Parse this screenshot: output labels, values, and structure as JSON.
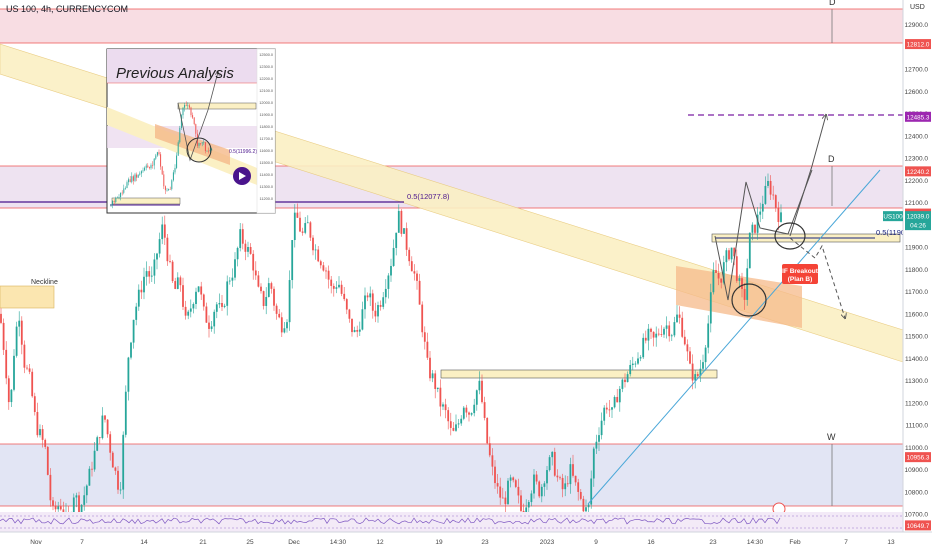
{
  "header": {
    "symbol_title": "US 100, 4h, CURRENCYCOM"
  },
  "colors": {
    "up": "#26a69a",
    "down": "#ef5350",
    "zone_red": "#f8cfd6",
    "zone_purple": "#e8dcef",
    "zone_blue": "#dfe3f3",
    "channel_yellow": "#fbf0c4",
    "channel_orange": "#f5b98a",
    "trend_blue": "#4aa7d8",
    "projection": "#7b1fa2"
  },
  "axis": {
    "currency_label": "USD",
    "price_ticks": [
      "12900.0",
      "12700.0",
      "12600.0",
      "12500.0",
      "12400.0",
      "12300.0",
      "12200.0",
      "12100.0",
      "11900.0",
      "11800.0",
      "11700.0",
      "11600.0",
      "11500.0",
      "11400.0",
      "11300.0",
      "11200.0",
      "11100.0",
      "11000.0",
      "10900.0",
      "10800.0",
      "10700.0"
    ],
    "price_badges": [
      {
        "label": "12812.0",
        "color": "#ef5350"
      },
      {
        "label": "12485.3",
        "color": "#9c27b0"
      },
      {
        "label": "12240.2",
        "color": "#ef5350"
      },
      {
        "label": "12050.5",
        "color": "#ef5350"
      },
      {
        "label": "12039.0",
        "color": "#26a69a"
      },
      {
        "label": "04:26",
        "color": "#26a69a"
      },
      {
        "label": "US100",
        "color": "#26a69a"
      },
      {
        "label": "10956.3",
        "color": "#ef5350"
      },
      {
        "label": "10649.7",
        "color": "#ef5350"
      }
    ],
    "time_ticks": [
      "Nov",
      "7",
      "14",
      "21",
      "25",
      "Dec",
      "14:30",
      "12",
      "19",
      "23",
      "2023",
      "9",
      "16",
      "23",
      "14:30",
      "Feb",
      "7",
      "13"
    ]
  },
  "annotations": {
    "neckline": "Neckline",
    "fib_label_1": "0.5(12077.8)",
    "fib_label_2": "0.5(11904",
    "plan_b_line1": "IF Breakout",
    "plan_b_line2": "(Plan B)",
    "point_d_top": "D",
    "point_d_mid": "D",
    "point_w": "W"
  },
  "inset": {
    "title": "Previous Analysis",
    "fib_label": "0.5(11996.2)",
    "axis_ticks": [
      "12500.0",
      "12300.0",
      "12200.0",
      "12100.0",
      "12000.0",
      "11900.0",
      "11800.0",
      "11700.0",
      "11600.0",
      "11500.0",
      "11400.0",
      "11300.0",
      "11200.0"
    ]
  },
  "chart_data": {
    "type": "candlestick",
    "title": "US 100, 4h, CURRENCYCOM",
    "yunit": "USD",
    "ylim": [
      10620,
      13010
    ],
    "x_ticks": [
      "Nov",
      "7",
      "14",
      "21",
      "25",
      "Dec",
      "14:30",
      "12",
      "19",
      "23",
      "2023",
      "9",
      "16",
      "23",
      "14:30",
      "Feb",
      "7",
      "13"
    ],
    "close_path": [
      [
        0,
        11600
      ],
      [
        5,
        11400
      ],
      [
        10,
        11150
      ],
      [
        15,
        11500
      ],
      [
        20,
        11620
      ],
      [
        23,
        11400
      ],
      [
        30,
        11300
      ],
      [
        36,
        11100
      ],
      [
        45,
        11000
      ],
      [
        52,
        10700
      ],
      [
        60,
        10750
      ],
      [
        68,
        10650
      ],
      [
        74,
        10800
      ],
      [
        80,
        10720
      ],
      [
        88,
        10850
      ],
      [
        96,
        11000
      ],
      [
        104,
        11150
      ],
      [
        112,
        10950
      ],
      [
        120,
        10800
      ],
      [
        124,
        11100
      ],
      [
        128,
        11400
      ],
      [
        134,
        11600
      ],
      [
        140,
        11700
      ],
      [
        146,
        11800
      ],
      [
        152,
        11750
      ],
      [
        158,
        11900
      ],
      [
        163,
        12000
      ],
      [
        168,
        11850
      ],
      [
        174,
        11700
      ],
      [
        180,
        11750
      ],
      [
        186,
        11550
      ],
      [
        192,
        11650
      ],
      [
        198,
        11750
      ],
      [
        204,
        11600
      ],
      [
        210,
        11550
      ],
      [
        216,
        11650
      ],
      [
        222,
        11600
      ],
      [
        228,
        11750
      ],
      [
        234,
        11800
      ],
      [
        240,
        11950
      ],
      [
        246,
        11900
      ],
      [
        252,
        11850
      ],
      [
        258,
        11700
      ],
      [
        264,
        11650
      ],
      [
        270,
        11750
      ],
      [
        276,
        11600
      ],
      [
        282,
        11550
      ],
      [
        288,
        11600
      ],
      [
        292,
        11950
      ],
      [
        296,
        12050
      ],
      [
        302,
        11950
      ],
      [
        308,
        12000
      ],
      [
        314,
        11900
      ],
      [
        320,
        11850
      ],
      [
        326,
        11800
      ],
      [
        332,
        11700
      ],
      [
        338,
        11750
      ],
      [
        344,
        11650
      ],
      [
        350,
        11550
      ],
      [
        356,
        11500
      ],
      [
        362,
        11600
      ],
      [
        368,
        11700
      ],
      [
        374,
        11600
      ],
      [
        380,
        11650
      ],
      [
        386,
        11750
      ],
      [
        392,
        11850
      ],
      [
        398,
        12050
      ],
      [
        404,
        11950
      ],
      [
        410,
        11850
      ],
      [
        416,
        11750
      ],
      [
        422,
        11550
      ],
      [
        428,
        11350
      ],
      [
        434,
        11300
      ],
      [
        440,
        11200
      ],
      [
        446,
        11150
      ],
      [
        452,
        11050
      ],
      [
        458,
        11100
      ],
      [
        464,
        11200
      ],
      [
        470,
        11150
      ],
      [
        476,
        11250
      ],
      [
        480,
        11280
      ],
      [
        486,
        11050
      ],
      [
        492,
        10900
      ],
      [
        498,
        10800
      ],
      [
        504,
        10750
      ],
      [
        510,
        10850
      ],
      [
        516,
        10800
      ],
      [
        522,
        10700
      ],
      [
        528,
        10780
      ],
      [
        534,
        10850
      ],
      [
        540,
        10800
      ],
      [
        546,
        10900
      ],
      [
        552,
        10950
      ],
      [
        558,
        10850
      ],
      [
        564,
        10800
      ],
      [
        570,
        10900
      ],
      [
        576,
        10820
      ],
      [
        582,
        10750
      ],
      [
        588,
        10700
      ],
      [
        594,
        11000
      ],
      [
        600,
        11100
      ],
      [
        606,
        11200
      ],
      [
        612,
        11150
      ],
      [
        618,
        11250
      ],
      [
        624,
        11300
      ],
      [
        630,
        11350
      ],
      [
        636,
        11400
      ],
      [
        642,
        11450
      ],
      [
        648,
        11500
      ],
      [
        654,
        11480
      ],
      [
        660,
        11530
      ],
      [
        666,
        11550
      ],
      [
        672,
        11520
      ],
      [
        678,
        11600
      ],
      [
        684,
        11500
      ],
      [
        690,
        11350
      ],
      [
        696,
        11300
      ],
      [
        702,
        11380
      ],
      [
        708,
        11550
      ],
      [
        714,
        11800
      ],
      [
        720,
        11750
      ],
      [
        726,
        11850
      ],
      [
        732,
        11900
      ],
      [
        738,
        11750
      ],
      [
        744,
        11650
      ],
      [
        750,
        11950
      ],
      [
        756,
        12000
      ],
      [
        762,
        12100
      ],
      [
        768,
        12180
      ],
      [
        772,
        12150
      ],
      [
        778,
        12050
      ],
      [
        782,
        12020
      ]
    ],
    "levels": [
      12812.0,
      12485.3,
      12240.2,
      12050.5,
      10956.3,
      10649.7
    ],
    "last_price": 12039.0
  }
}
